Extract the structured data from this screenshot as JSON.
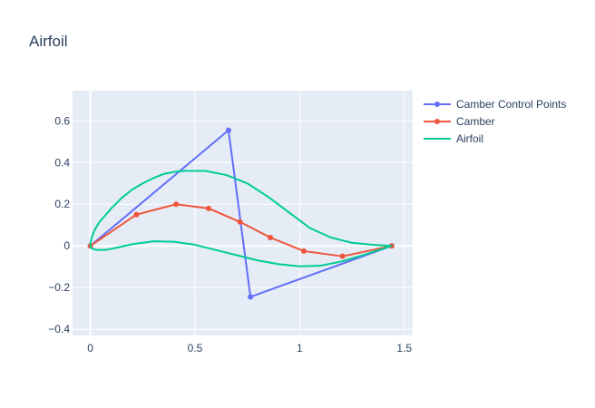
{
  "chart_data": {
    "type": "line",
    "title": "Airfoil",
    "xlabel": "",
    "ylabel": "",
    "xlim": [
      -0.085,
      1.54
    ],
    "ylim": [
      -0.43,
      0.745
    ],
    "x_ticks": [
      0,
      0.5,
      1,
      1.5
    ],
    "x_tick_labels": [
      "0",
      "0.5",
      "1",
      "1.5"
    ],
    "y_ticks": [
      -0.4,
      -0.2,
      0,
      0.2,
      0.4,
      0.6
    ],
    "y_tick_labels": [
      "−0.4",
      "−0.2",
      "0",
      "0.2",
      "0.4",
      "0.6"
    ],
    "grid": true,
    "legend_position": "top-right",
    "series": [
      {
        "name": "Camber Control Points",
        "color": "#636efa",
        "mode": "lines+markers",
        "x": [
          0,
          0.66,
          0.765,
          1.44
        ],
        "y": [
          0,
          0.555,
          -0.245,
          0
        ]
      },
      {
        "name": "Camber",
        "color": "#ef553b",
        "mode": "lines+markers",
        "x": [
          0,
          0.22,
          0.41,
          0.565,
          0.715,
          0.86,
          1.02,
          1.205,
          1.44
        ],
        "y": [
          0,
          0.15,
          0.2,
          0.18,
          0.115,
          0.04,
          -0.025,
          -0.05,
          0
        ]
      },
      {
        "name": "Airfoil",
        "color": "#00cc96",
        "mode": "lines",
        "x": [
          1.44,
          1.35,
          1.25,
          1.15,
          1.05,
          0.95,
          0.85,
          0.75,
          0.65,
          0.55,
          0.45,
          0.4,
          0.35,
          0.3,
          0.25,
          0.2,
          0.15,
          0.1,
          0.07,
          0.04,
          0.02,
          0.008,
          0.002,
          0,
          0.003,
          0.01,
          0.025,
          0.05,
          0.08,
          0.12,
          0.2,
          0.3,
          0.4,
          0.5,
          0.6,
          0.7,
          0.8,
          0.9,
          1.0,
          1.1,
          1.2,
          1.3,
          1.44
        ],
        "y": [
          0,
          0.005,
          0.015,
          0.04,
          0.085,
          0.16,
          0.235,
          0.3,
          0.34,
          0.36,
          0.36,
          0.355,
          0.345,
          0.325,
          0.3,
          0.27,
          0.23,
          0.18,
          0.145,
          0.11,
          0.075,
          0.045,
          0.02,
          0,
          -0.008,
          -0.014,
          -0.018,
          -0.02,
          -0.018,
          -0.01,
          0.008,
          0.022,
          0.02,
          0.005,
          -0.02,
          -0.045,
          -0.07,
          -0.088,
          -0.098,
          -0.095,
          -0.075,
          -0.045,
          0
        ]
      }
    ]
  }
}
